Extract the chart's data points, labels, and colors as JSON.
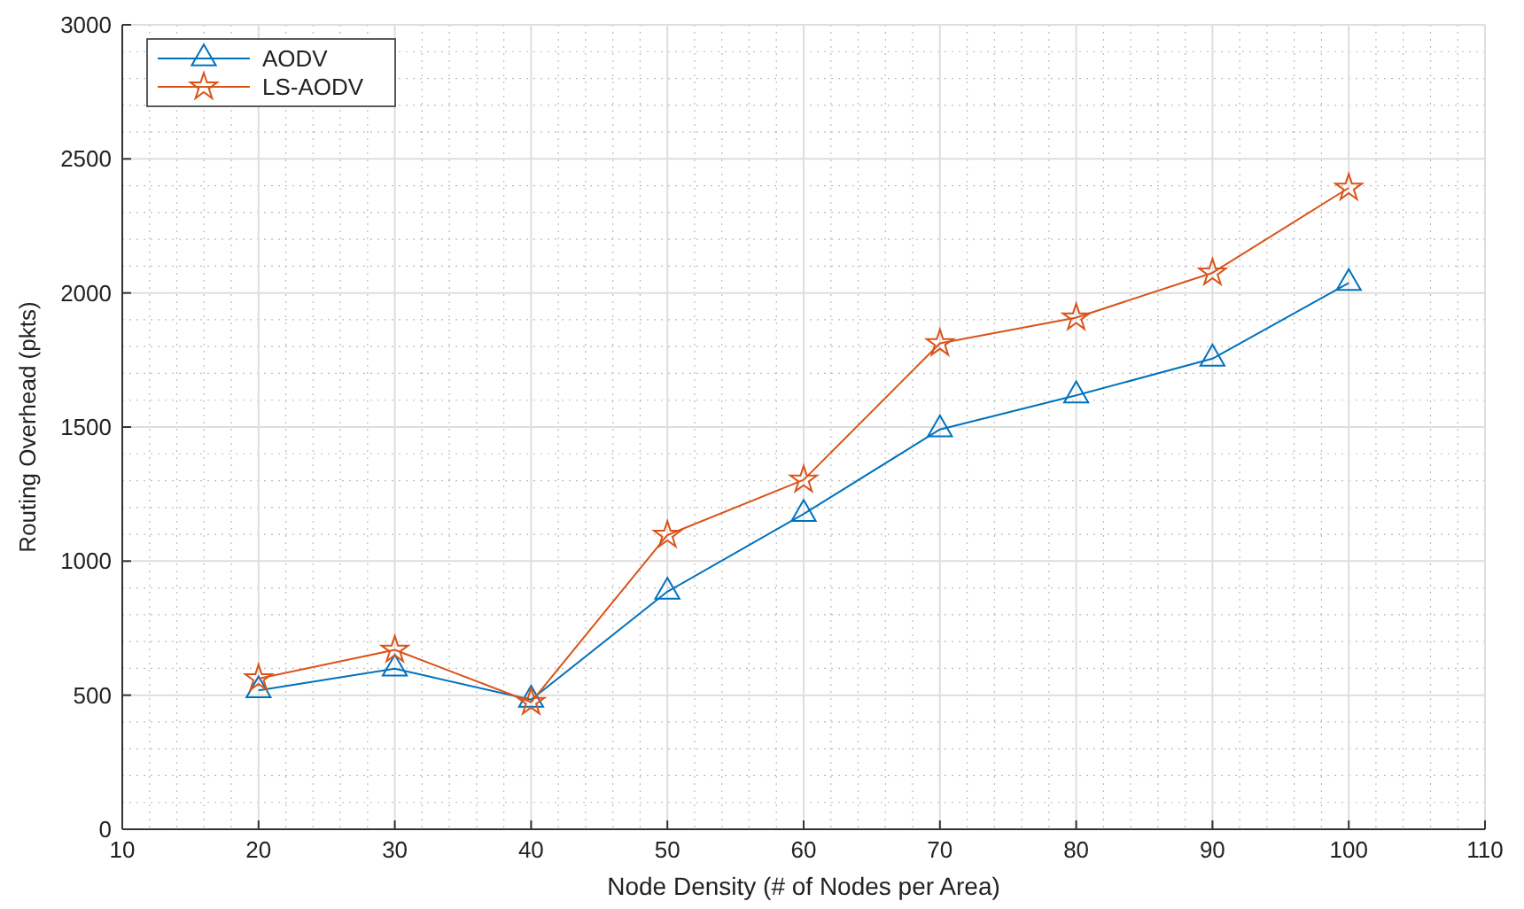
{
  "chart_data": {
    "type": "line",
    "xlabel": "Node Density (# of Nodes per Area)",
    "ylabel": "Routing Overhead (pkts)",
    "x": [
      20,
      30,
      40,
      50,
      60,
      70,
      80,
      90,
      100
    ],
    "series": [
      {
        "name": "AODV",
        "color": "#0072bd",
        "marker": "triangle",
        "values": [
          518,
          599,
          483,
          886,
          1176,
          1491,
          1618,
          1755,
          2037
        ]
      },
      {
        "name": "LS-AODV",
        "color": "#d95319",
        "marker": "star",
        "values": [
          562,
          669,
          474,
          1097,
          1303,
          1812,
          1908,
          2075,
          2392
        ]
      }
    ],
    "xlim": [
      10,
      110
    ],
    "xticks": [
      10,
      20,
      30,
      40,
      50,
      60,
      70,
      80,
      90,
      100,
      110
    ],
    "ylim": [
      0,
      3000
    ],
    "yticks": [
      0,
      500,
      1000,
      1500,
      2000,
      2500,
      3000
    ],
    "grid": true,
    "legend": "top left",
    "line_style": "solid"
  }
}
